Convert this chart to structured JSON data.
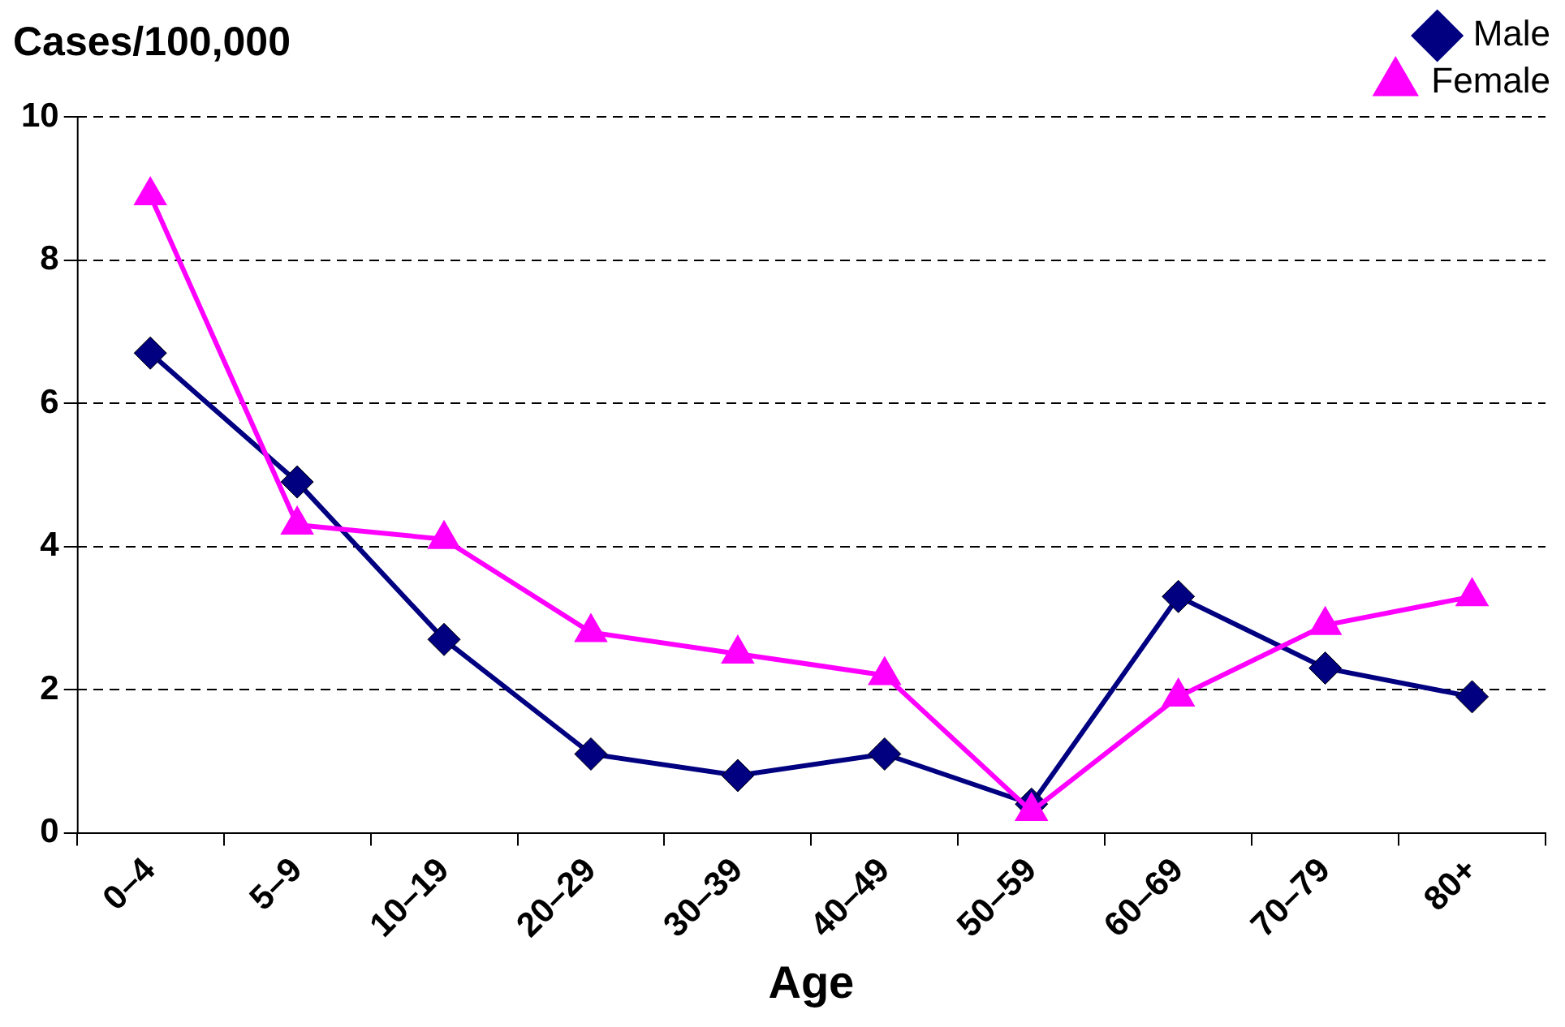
{
  "chart_data": {
    "type": "line",
    "ylabel": "Cases/100,000",
    "xlabel": "Age",
    "categories": [
      "0–4",
      "5–9",
      "10–19",
      "20–29",
      "30–39",
      "40–49",
      "50–59",
      "60–69",
      "70–79",
      "80+"
    ],
    "series": [
      {
        "name": "Male",
        "color": "#000080",
        "marker": "diamond",
        "values": [
          6.7,
          4.9,
          2.7,
          1.1,
          0.8,
          1.1,
          0.4,
          3.3,
          2.3,
          1.9
        ]
      },
      {
        "name": "Female",
        "color": "#ff00ff",
        "marker": "triangle",
        "values": [
          8.9,
          4.3,
          4.1,
          2.8,
          2.5,
          2.2,
          0.3,
          1.9,
          2.9,
          3.3
        ]
      }
    ],
    "ylim": [
      0,
      10
    ],
    "yticks": [
      0,
      2,
      4,
      6,
      8,
      10
    ],
    "grid": "y",
    "legend": "top right"
  }
}
